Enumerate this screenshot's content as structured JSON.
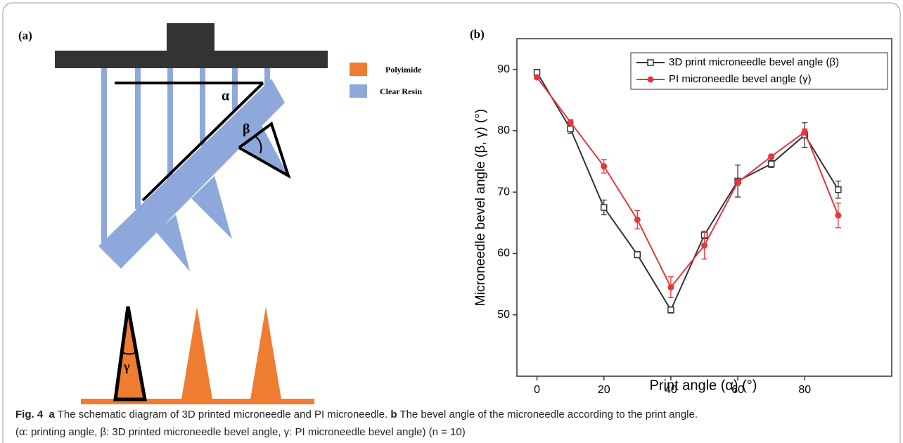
{
  "panel_a": {
    "label": "(a)",
    "alpha": "α",
    "beta": "β",
    "gamma": "γ",
    "legend": [
      "Polyimide",
      "Clear Resin"
    ]
  },
  "chart_data": {
    "type": "line",
    "panel_label": "(b)",
    "x_label": "Print angle (α) (°)",
    "y_label": "Microneedle bevel angle (β, γ) (°)",
    "x": [
      0,
      10,
      20,
      30,
      40,
      50,
      60,
      70,
      80,
      90
    ],
    "xlim": [
      -6,
      106
    ],
    "xticks": [
      0,
      20,
      40,
      60,
      80
    ],
    "ylim": [
      40,
      95
    ],
    "yticks": [
      50,
      60,
      70,
      80,
      90
    ],
    "legend": "upper right",
    "series": [
      {
        "name": "3D print microneedle bevel angle (β)",
        "color": "#333333",
        "marker": "square",
        "values": [
          89.5,
          80.3,
          67.5,
          59.8,
          50.8,
          63.0,
          71.8,
          74.6,
          79.3,
          70.4
        ],
        "errors": [
          0.5,
          0.7,
          1.2,
          0.5,
          0.5,
          0.6,
          2.6,
          0.6,
          2.0,
          1.4
        ]
      },
      {
        "name": "PI microneedle bevel angle (γ)",
        "color": "#e8353c",
        "marker": "circle",
        "values": [
          88.7,
          81.4,
          74.2,
          65.5,
          54.5,
          61.3,
          71.6,
          75.8,
          79.8,
          66.2
        ],
        "errors": [
          0.3,
          0.4,
          1.1,
          1.5,
          1.7,
          2.2,
          0.5,
          0.3,
          0.5,
          2.0
        ]
      }
    ]
  },
  "caption": {
    "fig": "Fig. 4",
    "a": "a",
    "text_a": "The schematic diagram of 3D printed microneedle and PI microneedle.",
    "b": "b",
    "text_b": "The bevel angle of the microneedle according to the print angle.",
    "line2": "(α: printing angle, β: 3D printed microneedle bevel angle, γ: PI microneedle bevel angle) (n = 10)"
  }
}
